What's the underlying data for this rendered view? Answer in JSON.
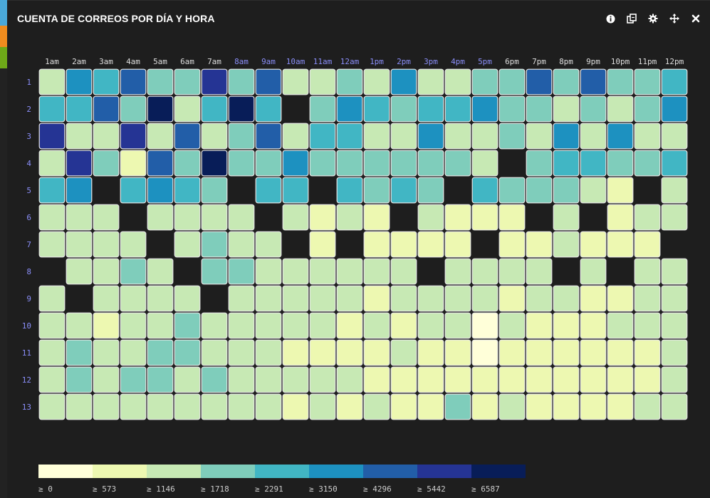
{
  "title": "CUENTA DE CORREOS POR DÍA Y HORA",
  "toolbar": [
    {
      "name": "info-icon",
      "label": "info"
    },
    {
      "name": "copy-icon",
      "label": "copy"
    },
    {
      "name": "gear-icon",
      "label": "settings"
    },
    {
      "name": "move-icon",
      "label": "move"
    },
    {
      "name": "close-icon",
      "label": "close"
    }
  ],
  "colors": {
    "background": "#1e1e1e",
    "title": "#ffffff",
    "hour_label_default": "#dddddd",
    "hour_label_accent": "#8a8ef8",
    "day_label": "#8a8ef8",
    "legend_text": "#cccccc",
    "empty_cell": "#1e1e1e",
    "cell_border": "#e6e6e6",
    "stripes": [
      "#4aa8d8",
      "#f08c1e",
      "#6ea818"
    ]
  },
  "chart_data": {
    "type": "heatmap",
    "x": [
      "1am",
      "2am",
      "3am",
      "4am",
      "5am",
      "6am",
      "7am",
      "8am",
      "9am",
      "10am",
      "11am",
      "12am",
      "1pm",
      "2pm",
      "3pm",
      "4pm",
      "5pm",
      "6pm",
      "7pm",
      "8pm",
      "9pm",
      "10pm",
      "11pm",
      "12pm"
    ],
    "x_accent": [
      false,
      false,
      false,
      false,
      false,
      false,
      false,
      true,
      true,
      true,
      true,
      true,
      true,
      true,
      true,
      true,
      true,
      false,
      false,
      false,
      false,
      false,
      false,
      false
    ],
    "y": [
      "1",
      "2",
      "3",
      "4",
      "5",
      "6",
      "7",
      "8",
      "9",
      "10",
      "11",
      "12",
      "13"
    ],
    "thresholds": [
      0,
      573,
      1146,
      1718,
      2291,
      3150,
      4296,
      5442,
      6587
    ],
    "legend_labels": [
      "≥ 0",
      "≥ 573",
      "≥ 1146",
      "≥ 1718",
      "≥ 2291",
      "≥ 3150",
      "≥ 4296",
      "≥ 5442",
      "≥ 6587"
    ],
    "palette": [
      "#ffffd9",
      "#edf8b1",
      "#c7e9b4",
      "#7fcdbb",
      "#41b6c4",
      "#1d91c0",
      "#225ea8",
      "#253494",
      "#081d58"
    ],
    "levels": [
      [
        2,
        5,
        4,
        6,
        3,
        3,
        7,
        3,
        6,
        2,
        2,
        3,
        2,
        5,
        2,
        2,
        3,
        3,
        6,
        3,
        6,
        3,
        3,
        4
      ],
      [
        4,
        4,
        6,
        3,
        8,
        2,
        4,
        8,
        4,
        -1,
        3,
        5,
        4,
        3,
        4,
        4,
        5,
        3,
        3,
        2,
        3,
        2,
        3,
        5
      ],
      [
        7,
        2,
        2,
        7,
        2,
        6,
        2,
        3,
        6,
        2,
        4,
        4,
        2,
        2,
        5,
        2,
        2,
        3,
        2,
        5,
        2,
        5,
        2,
        2
      ],
      [
        2,
        7,
        3,
        1,
        6,
        3,
        8,
        3,
        3,
        5,
        3,
        3,
        3,
        3,
        3,
        3,
        2,
        -1,
        3,
        4,
        4,
        3,
        3,
        4
      ],
      [
        4,
        5,
        -1,
        4,
        5,
        4,
        3,
        -1,
        4,
        4,
        -1,
        4,
        3,
        4,
        3,
        -1,
        4,
        3,
        3,
        3,
        2,
        1,
        -1,
        2
      ],
      [
        2,
        2,
        2,
        -1,
        2,
        2,
        2,
        2,
        -1,
        2,
        1,
        2,
        1,
        -1,
        2,
        1,
        1,
        1,
        -1,
        2,
        -1,
        1,
        2,
        2
      ],
      [
        2,
        2,
        2,
        2,
        -1,
        2,
        3,
        2,
        2,
        -1,
        1,
        -1,
        1,
        1,
        1,
        1,
        -1,
        1,
        1,
        2,
        1,
        1,
        1,
        -1
      ],
      [
        -1,
        2,
        2,
        3,
        2,
        -1,
        3,
        3,
        2,
        2,
        2,
        2,
        2,
        2,
        -1,
        2,
        2,
        2,
        2,
        -1,
        2,
        -1,
        2,
        2
      ],
      [
        2,
        -1,
        2,
        2,
        2,
        2,
        -1,
        2,
        2,
        2,
        2,
        2,
        1,
        2,
        2,
        2,
        2,
        1,
        2,
        2,
        1,
        1,
        2,
        2
      ],
      [
        2,
        2,
        1,
        2,
        2,
        3,
        2,
        2,
        2,
        2,
        2,
        1,
        2,
        1,
        2,
        2,
        0,
        2,
        1,
        1,
        1,
        2,
        2,
        2
      ],
      [
        2,
        3,
        2,
        2,
        3,
        3,
        2,
        2,
        2,
        1,
        1,
        1,
        1,
        2,
        1,
        1,
        0,
        1,
        1,
        1,
        1,
        1,
        1,
        2
      ],
      [
        2,
        3,
        2,
        3,
        3,
        2,
        3,
        2,
        2,
        2,
        2,
        2,
        1,
        1,
        1,
        1,
        1,
        1,
        1,
        1,
        1,
        1,
        1,
        2
      ],
      [
        2,
        2,
        2,
        2,
        2,
        2,
        2,
        2,
        2,
        1,
        2,
        1,
        2,
        1,
        1,
        3,
        1,
        2,
        1,
        1,
        1,
        1,
        2,
        2
      ]
    ]
  }
}
